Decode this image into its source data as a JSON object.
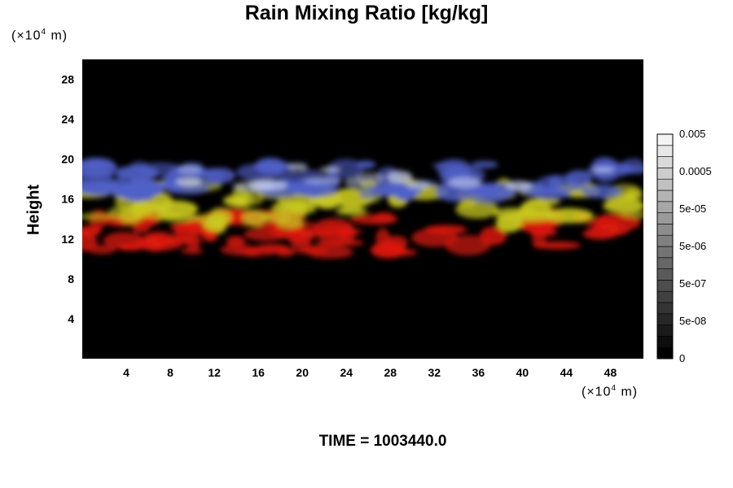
{
  "chart_data": {
    "type": "heatmap",
    "title": "Rain Mixing Ratio [kg/kg]",
    "ylabel": "Height",
    "xlabel": "",
    "x_unit": {
      "prefix": "(×10",
      "exp": "4",
      "suffix": " m)"
    },
    "y_unit": {
      "prefix": "(×10",
      "exp": "4",
      "suffix": " m)"
    },
    "xlim": [
      0,
      51
    ],
    "ylim": [
      0,
      30
    ],
    "x_ticks": [
      4,
      8,
      12,
      16,
      20,
      24,
      28,
      32,
      36,
      40,
      44,
      48
    ],
    "y_ticks": [
      4,
      8,
      12,
      16,
      20,
      24,
      28
    ],
    "colorbar": {
      "scale": "log",
      "labels": [
        "0",
        "5e-08",
        "5e-07",
        "5e-06",
        "5e-05",
        "0.0005",
        "0.005"
      ],
      "levels": 20,
      "gray_range": [
        "#000000",
        "#f4f4f4"
      ]
    },
    "field_colors": {
      "background": "#000000",
      "low_band": "#e01a10",
      "mid_band": "#c8c820",
      "high_band": "#5060c8",
      "peak": "#c8d0f0"
    },
    "bands": [
      {
        "name": "",
        "color": "low_band",
        "y_range": [
          10.5,
          14.5
        ]
      },
      {
        "name": "",
        "color": "mid_band",
        "y_range": [
          13.5,
          17.5
        ]
      },
      {
        "name": "",
        "color": "high_band",
        "y_range": [
          16.5,
          19.5
        ]
      }
    ],
    "time_label": "TIME = 1003440.0"
  }
}
